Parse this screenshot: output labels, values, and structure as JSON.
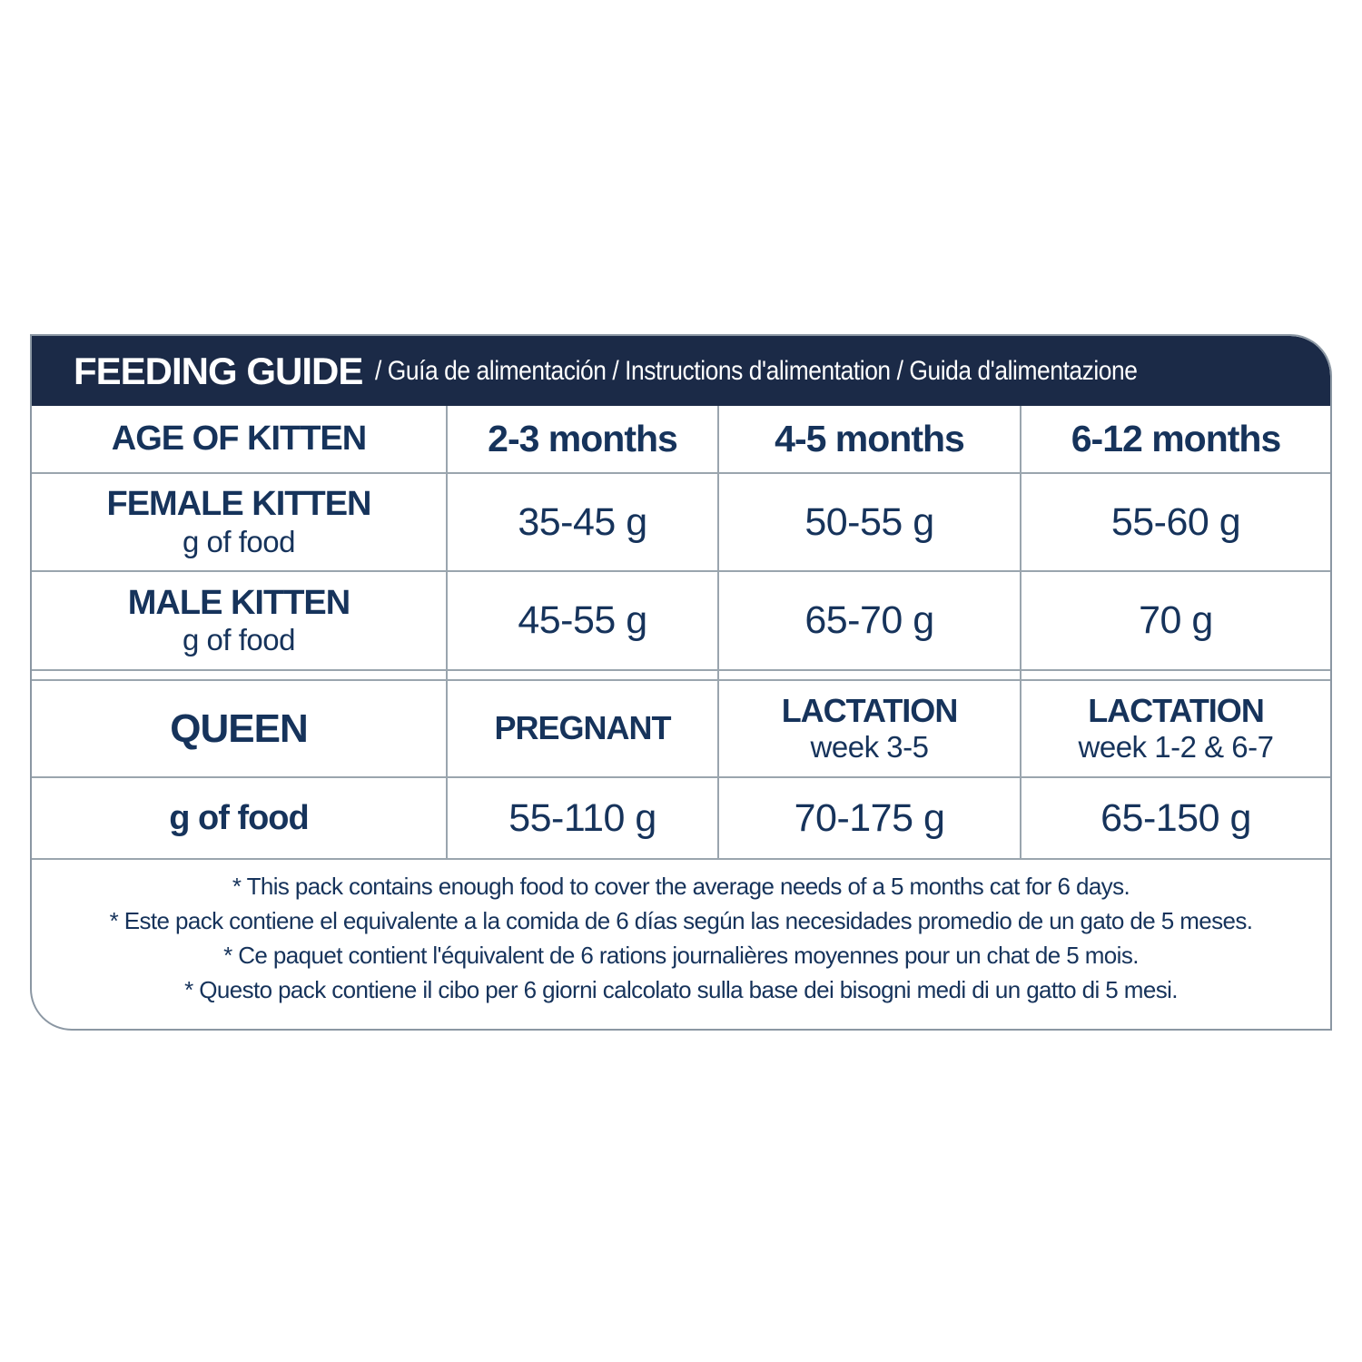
{
  "colors": {
    "header_bg": "#1b2a47",
    "text_navy": "#16335b",
    "border_gray": "#9aa5ae"
  },
  "header": {
    "title": "FEEDING GUIDE",
    "subtitle": "/ Guía de alimentación / Instructions d'alimentation / Guida d'alimentazione"
  },
  "chart_data": {
    "type": "table",
    "title": "FEEDING GUIDE",
    "columns": [
      "AGE OF KITTEN",
      "2-3 months",
      "4-5 months",
      "6-12 months"
    ],
    "rows": [
      [
        "FEMALE KITTEN g of food",
        "35-45 g",
        "50-55 g",
        "55-60 g"
      ],
      [
        "MALE KITTEN g of food",
        "45-55 g",
        "65-70 g",
        "70 g"
      ],
      [
        "QUEEN",
        "PREGNANT",
        "LACTATION week 3-5",
        "LACTATION week 1-2 & 6-7"
      ],
      [
        "g of food",
        "55-110 g",
        "70-175 g",
        "65-150 g"
      ]
    ]
  },
  "table": {
    "age_row": {
      "label": "AGE OF KITTEN",
      "months": [
        "2-3 months",
        "4-5 months",
        "6-12 months"
      ]
    },
    "female_row": {
      "label": "FEMALE KITTEN",
      "sublabel": "g of food",
      "values": [
        "35-45 g",
        "50-55 g",
        "55-60 g"
      ]
    },
    "male_row": {
      "label": "MALE KITTEN",
      "sublabel": "g of food",
      "values": [
        "45-55 g",
        "65-70 g",
        "70 g"
      ]
    },
    "queen_row": {
      "label": "QUEEN",
      "cells": [
        {
          "label": "PREGNANT",
          "sublabel": ""
        },
        {
          "label": "LACTATION",
          "sublabel": "week 3-5"
        },
        {
          "label": "LACTATION",
          "sublabel": "week 1-2 & 6-7"
        }
      ]
    },
    "food_row": {
      "label": "g of food",
      "values": [
        "55-110 g",
        "70-175 g",
        "65-150 g"
      ]
    }
  },
  "footnotes": [
    "* This pack contains enough food to cover the average needs of a 5 months cat for 6 days.",
    "* Este pack contiene el equivalente a la comida de 6 días según las necesidades promedio de un gato de 5 meses.",
    "* Ce paquet contient l'équivalent de 6 rations journalières moyennes pour un chat de 5 mois.",
    "* Questo pack contiene il cibo per 6 giorni calcolato sulla base dei bisogni medi di un gatto di 5 mesi."
  ]
}
